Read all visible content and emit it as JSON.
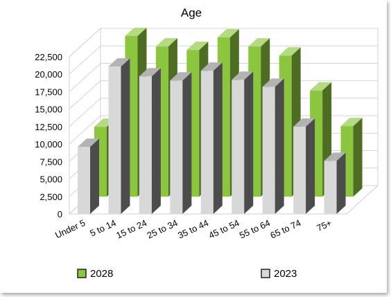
{
  "chart_data": {
    "type": "bar",
    "title": "Age",
    "xlabel": "",
    "ylabel": "",
    "categories": [
      "Under 5",
      "5 to 14",
      "15 to 24",
      "25 to 34",
      "35 to 44",
      "45 to 54",
      "55 to 64",
      "65 to 74",
      "75+"
    ],
    "series": [
      {
        "name": "2028",
        "color": "#8cc63f",
        "values": [
          10000,
          23000,
          21500,
          21000,
          22800,
          21500,
          20200,
          15200,
          10100
        ]
      },
      {
        "name": "2023",
        "color": "#d8d8d8",
        "values": [
          9600,
          21100,
          19700,
          19100,
          20500,
          19200,
          18200,
          12500,
          7600
        ]
      }
    ],
    "ylim": [
      0,
      22500
    ],
    "yticks": [
      "0",
      "2,500",
      "5,000",
      "7,500",
      "10,000",
      "12,500",
      "15,000",
      "17,500",
      "20,000",
      "22,500"
    ],
    "grid": true,
    "legend": "bottom",
    "style": "3d"
  }
}
